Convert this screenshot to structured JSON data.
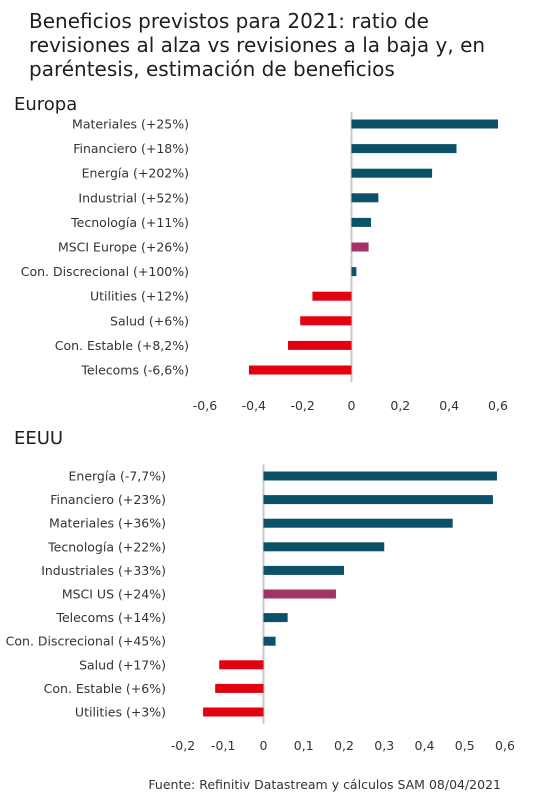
{
  "title": "Beneficios previstos para 2021: ratio de revisiones al alza vs revisiones a la baja y, en paréntesis, estimación de beneficios",
  "source": "Fuente: Refinitiv Datastream y cálculos SAM 08/04/2021",
  "colors": {
    "positive": "#0b5168",
    "index": "#a03464",
    "negative": "#e3000f",
    "axis": "#c8c8c8"
  },
  "chart_data": [
    {
      "type": "bar",
      "orientation": "horizontal",
      "panel_label": "Europa",
      "categories": [
        "Materiales (+25%)",
        "Financiero (+18%)",
        "Energía (+202%)",
        "Industrial (+52%)",
        "Tecnología (+11%)",
        "MSCI Europe (+26%)",
        "Con. Discrecional (+100%)",
        "Utilities (+12%)",
        "Salud (+6%)",
        "Con. Estable (+8,2%)",
        "Telecoms (-6,6%)"
      ],
      "values": [
        0.6,
        0.43,
        0.33,
        0.11,
        0.08,
        0.07,
        0.02,
        -0.16,
        -0.21,
        -0.26,
        -0.42
      ],
      "highlight_index": 5,
      "xlim": [
        -0.6,
        0.6
      ],
      "ticks": [
        "-0,6",
        "-0,4",
        "-0,2",
        "0",
        "0,2",
        "0,4",
        "0,6"
      ],
      "tick_values": [
        -0.6,
        -0.4,
        -0.2,
        0,
        0.2,
        0.4,
        0.6
      ]
    },
    {
      "type": "bar",
      "orientation": "horizontal",
      "panel_label": "EEUU",
      "categories": [
        "Energía (-7,7%)",
        "Financiero (+23%)",
        "Materiales (+36%)",
        "Tecnología (+22%)",
        "Industriales (+33%)",
        "MSCI US (+24%)",
        "Telecoms (+14%)",
        "Con. Discrecional (+45%)",
        "Salud (+17%)",
        "Con. Estable (+6%)",
        "Utilities (+3%)"
      ],
      "values": [
        0.58,
        0.57,
        0.47,
        0.3,
        0.2,
        0.18,
        0.06,
        0.03,
        -0.11,
        -0.12,
        -0.15
      ],
      "highlight_index": 5,
      "xlim": [
        -0.2,
        0.6
      ],
      "ticks": [
        "-0,2",
        "-0,1",
        "0",
        "0,1",
        "0,2",
        "0,3",
        "0,4",
        "0,5",
        "0,6"
      ],
      "tick_values": [
        -0.2,
        -0.1,
        0,
        0.1,
        0.2,
        0.3,
        0.4,
        0.5,
        0.6
      ]
    }
  ]
}
